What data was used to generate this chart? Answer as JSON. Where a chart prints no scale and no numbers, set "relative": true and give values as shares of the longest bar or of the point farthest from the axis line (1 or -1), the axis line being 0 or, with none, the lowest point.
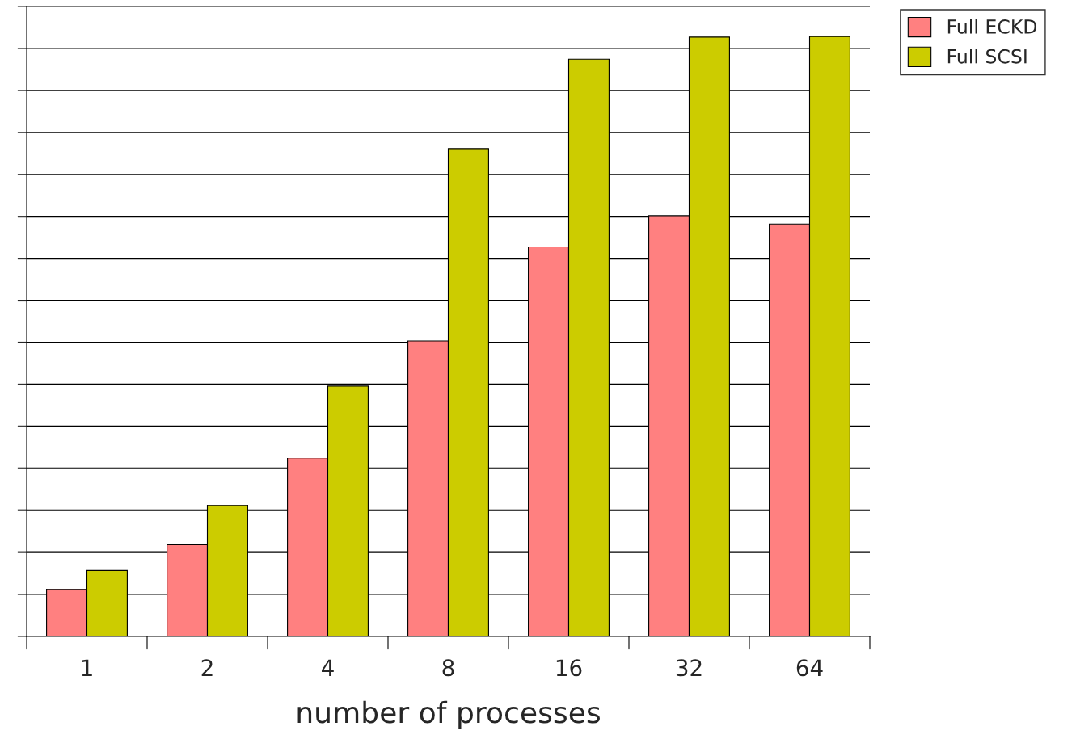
{
  "chart_data": {
    "type": "bar",
    "xlabel": "number of processes",
    "categories": [
      "1",
      "2",
      "4",
      "8",
      "16",
      "32",
      "64"
    ],
    "relative": true,
    "series": [
      {
        "name": "Full ECKD",
        "color": "#ff8080",
        "values": [
          0.078,
          0.153,
          0.297,
          0.492,
          0.649,
          0.701,
          0.687
        ]
      },
      {
        "name": "Full SCSI",
        "color": "#cccc00",
        "values": [
          0.11,
          0.218,
          0.418,
          0.813,
          0.962,
          0.999,
          1
        ]
      }
    ],
    "grid": "y",
    "legend": "top right"
  }
}
